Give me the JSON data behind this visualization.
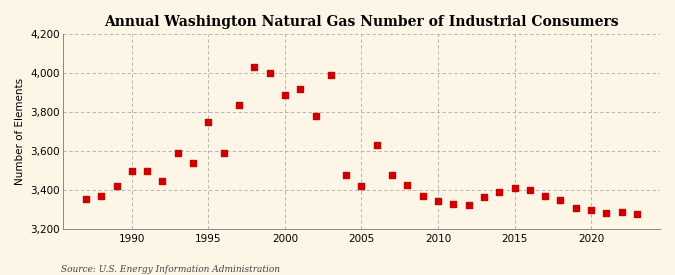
{
  "title": "Annual Washington Natural Gas Number of Industrial Consumers",
  "ylabel": "Number of Elements",
  "source": "Source: U.S. Energy Information Administration",
  "background_color": "#fdf5e6",
  "marker_color": "#cc0000",
  "grid_color": "#aaaaaa",
  "xlim": [
    1985.5,
    2024.5
  ],
  "ylim": [
    3200,
    4200
  ],
  "yticks": [
    3200,
    3400,
    3600,
    3800,
    4000,
    4200
  ],
  "xticks": [
    1990,
    1995,
    2000,
    2005,
    2010,
    2015,
    2020
  ],
  "years": [
    1987,
    1988,
    1989,
    1990,
    1991,
    1992,
    1993,
    1994,
    1995,
    1996,
    1997,
    1998,
    1999,
    2000,
    2001,
    2002,
    2003,
    2004,
    2005,
    2006,
    2007,
    2008,
    2009,
    2010,
    2011,
    2012,
    2013,
    2014,
    2015,
    2016,
    2017,
    2018,
    2019,
    2020,
    2021,
    2022,
    2023
  ],
  "values": [
    3355,
    3370,
    3420,
    3500,
    3500,
    3450,
    3590,
    3540,
    3750,
    3590,
    3840,
    4030,
    4000,
    3890,
    3920,
    3780,
    3990,
    3480,
    3420,
    3635,
    3480,
    3425,
    3370,
    3345,
    3330,
    3325,
    3365,
    3390,
    3410,
    3400,
    3370,
    3350,
    3310,
    3300,
    3285,
    3290,
    3280
  ]
}
